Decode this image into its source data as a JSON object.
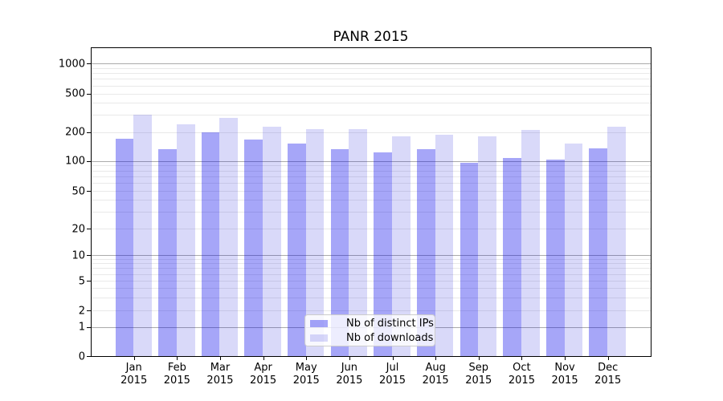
{
  "title": "PANR 2015",
  "chart_data": {
    "type": "bar",
    "title": "PANR 2015",
    "yscale": "symlog",
    "grid": true,
    "legend_position": "lower center",
    "categories": [
      "Jan",
      "Feb",
      "Mar",
      "Apr",
      "May",
      "Jun",
      "Jul",
      "Aug",
      "Sep",
      "Oct",
      "Nov",
      "Dec"
    ],
    "category_year": "2015",
    "yticks": [
      0,
      1,
      2,
      5,
      10,
      20,
      50,
      100,
      200,
      500,
      1000
    ],
    "ylim": [
      0,
      1400
    ],
    "series": [
      {
        "name": "Nb of distinct IPs",
        "color": "rgba(0,0,235,0.35)",
        "values": [
          170,
          132,
          200,
          167,
          152,
          132,
          122,
          133,
          95,
          108,
          102,
          134
        ]
      },
      {
        "name": "Nb of downloads",
        "color": "rgba(0,0,215,0.15)",
        "values": [
          300,
          238,
          280,
          228,
          213,
          212,
          181,
          186,
          180,
          208,
          150,
          228
        ]
      }
    ]
  }
}
